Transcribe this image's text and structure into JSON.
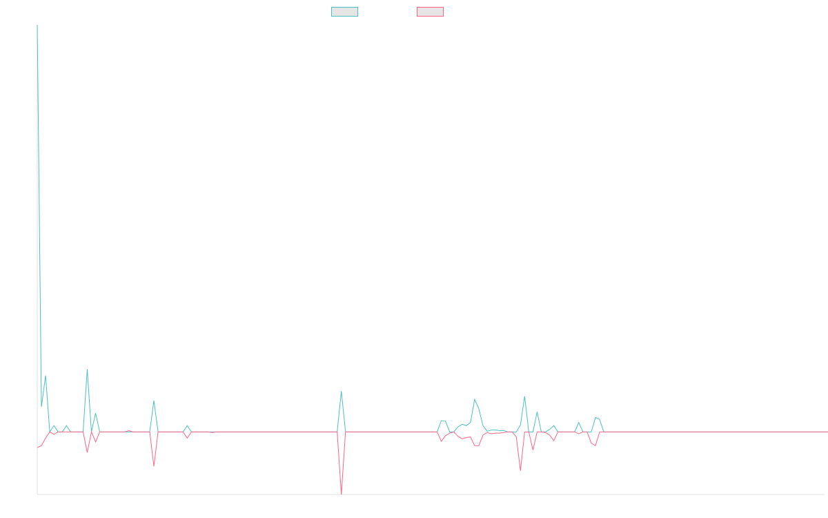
{
  "chart_data": {
    "type": "line",
    "title": "",
    "xlabel": "",
    "ylabel": "",
    "grid": false,
    "legend_position": "top-center",
    "ylim": [
      -10,
      65
    ],
    "xlim": [
      0,
      189
    ],
    "series": [
      {
        "name": "",
        "color": "#4bc0c0",
        "fill": "#e5e5e5",
        "values": [
          65,
          4,
          9,
          0,
          1,
          0,
          0,
          1,
          0,
          0,
          0,
          0,
          10,
          0,
          3,
          0,
          0,
          0,
          0,
          0,
          0,
          0,
          0,
          0,
          0,
          0,
          0,
          0,
          5,
          0,
          0,
          0,
          0,
          0,
          0,
          0,
          1,
          0,
          0,
          0,
          0,
          0,
          0,
          0,
          0,
          0,
          0,
          0,
          0,
          0,
          0,
          0,
          0,
          0,
          0,
          0,
          0,
          0,
          0,
          0,
          0,
          0,
          0,
          0,
          0,
          0,
          0,
          0,
          0,
          0,
          0,
          0,
          0,
          6.5,
          0,
          0,
          0,
          0,
          0,
          0,
          0,
          0,
          0,
          0,
          0,
          0,
          0,
          0,
          0,
          0,
          0,
          0,
          0,
          0,
          0,
          0,
          0,
          1.8,
          1.7,
          0,
          0,
          0.8,
          1.2,
          1,
          1.5,
          5.2,
          3.7,
          1,
          0.1,
          0.3,
          0.3,
          0.2,
          0.2,
          0,
          0,
          0,
          1.1,
          5.7,
          0,
          0,
          3.2,
          0,
          0,
          0.4,
          1,
          0,
          0,
          0,
          0,
          0,
          1.5,
          0,
          0,
          0,
          2.3,
          2,
          0,
          0,
          0,
          0,
          0,
          0,
          0,
          0,
          0,
          0,
          0,
          0,
          0,
          0,
          0,
          0,
          0,
          0,
          0,
          0,
          0,
          0,
          0,
          0,
          0,
          0,
          0,
          0,
          0,
          0,
          0,
          0,
          0,
          0,
          0,
          0,
          0,
          0,
          0,
          0,
          0,
          0,
          0,
          0,
          0,
          0,
          0,
          0,
          0,
          0,
          0,
          0,
          0,
          0,
          0
        ]
      },
      {
        "name": "",
        "color": "#ff6384",
        "fill": "#e5e5e5",
        "values": [
          -2.5,
          -2.2,
          -1,
          0,
          -0.4,
          0,
          0,
          0,
          0,
          0,
          0,
          0,
          -3.3,
          0,
          -1.6,
          0,
          0,
          0,
          0,
          0,
          0,
          0,
          0.2,
          0,
          0,
          0,
          0,
          0,
          -5.5,
          0,
          0,
          0,
          0,
          0,
          0,
          0,
          -1,
          0,
          0,
          0,
          0,
          0,
          -0.1,
          0,
          0,
          0,
          0,
          0,
          0,
          0,
          0,
          0,
          0,
          0,
          0,
          0,
          0,
          0,
          0,
          0,
          0,
          0,
          0,
          0,
          0,
          0,
          0,
          0,
          0,
          0,
          0,
          0,
          0,
          -10,
          0,
          0,
          0,
          0,
          0,
          0,
          0,
          0,
          0,
          0,
          0,
          0,
          0,
          0,
          0,
          0,
          0,
          0,
          0,
          0,
          0,
          0,
          0,
          -1.5,
          -0.6,
          -0.2,
          0,
          -0.7,
          -1.1,
          -0.9,
          -0.8,
          -2.2,
          -2.2,
          -0.5,
          -0.1,
          -0.3,
          -0.2,
          -0.2,
          -0.1,
          0,
          0,
          -0.8,
          -6.2,
          0,
          0,
          -2.9,
          0,
          0,
          -0.1,
          -0.5,
          -1.4,
          0,
          0,
          0,
          0,
          0,
          -0.3,
          0,
          0,
          -1.8,
          -2.2,
          0,
          0,
          0,
          0,
          0,
          0,
          0,
          0,
          0,
          0,
          0,
          0,
          0,
          0,
          0,
          0,
          0,
          0,
          0,
          0,
          0,
          0,
          0,
          0,
          0,
          0,
          0,
          0,
          0,
          0,
          0,
          0,
          0,
          0,
          0,
          0,
          0,
          0,
          0,
          0,
          0,
          0,
          0,
          0,
          0,
          0,
          0,
          0,
          0,
          0,
          0,
          0,
          0,
          0,
          0,
          0,
          0,
          0,
          0
        ]
      }
    ]
  }
}
